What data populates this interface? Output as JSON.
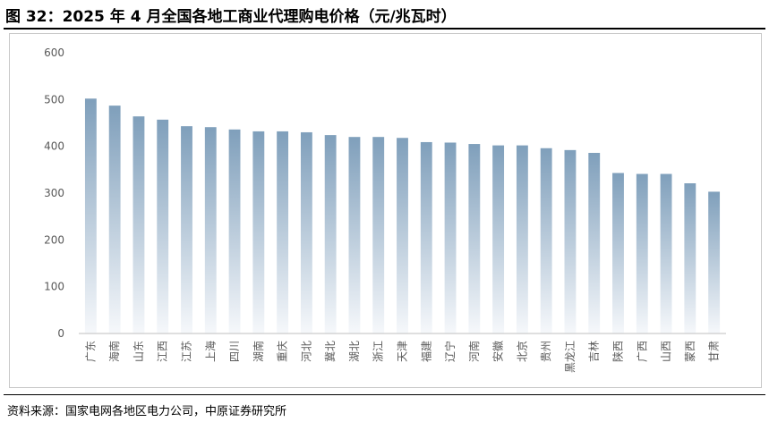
{
  "figure": {
    "title": "图 32：2025 年 4 月全国各地工商业代理购电价格（元/兆瓦时）",
    "source": "资料来源：国家电网各地区电力公司，中原证券研究所"
  },
  "colors": {
    "bar_top": "#7f9fbb",
    "bar_bottom": "#f6f8fb",
    "axis": "#bfbfbf",
    "tick_text": "#595959"
  },
  "chart_data": {
    "type": "bar",
    "title": "图 32：2025 年 4 月全国各地工商业代理购电价格（元/兆瓦时）",
    "xlabel": "",
    "ylabel": "",
    "ylim": [
      0,
      600
    ],
    "yticks": [
      0,
      100,
      200,
      300,
      400,
      500,
      600
    ],
    "grid": false,
    "legend": "none",
    "categories": [
      "广东",
      "海南",
      "山东",
      "江西",
      "江苏",
      "上海",
      "四川",
      "湖南",
      "重庆",
      "河北",
      "冀北",
      "湖北",
      "浙江",
      "天津",
      "福建",
      "辽宁",
      "河南",
      "安徽",
      "北京",
      "贵州",
      "黑龙江",
      "吉林",
      "陕西",
      "广西",
      "山西",
      "蒙西",
      "甘肃"
    ],
    "values": [
      502,
      487,
      464,
      457,
      443,
      441,
      436,
      432,
      432,
      430,
      424,
      420,
      420,
      418,
      409,
      408,
      405,
      402,
      402,
      396,
      392,
      386,
      343,
      341,
      341,
      321,
      303
    ]
  }
}
